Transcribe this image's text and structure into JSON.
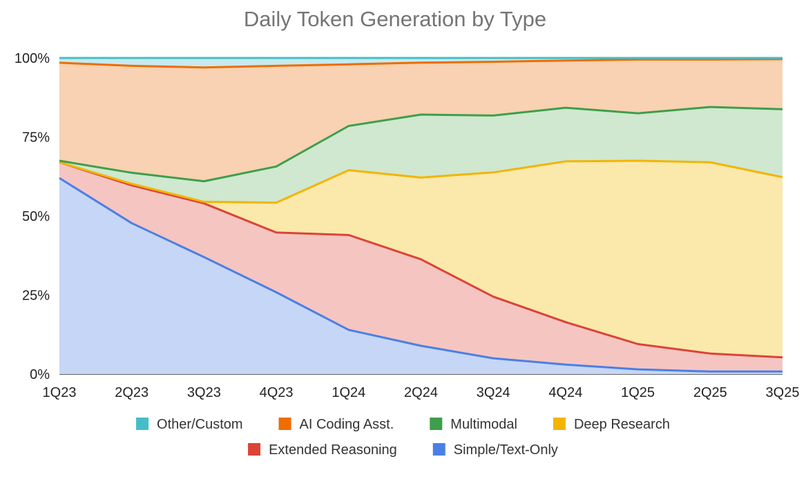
{
  "chart_data": {
    "type": "area",
    "stacked": "percent",
    "title": "Daily Token Generation by Type",
    "xlabel": "",
    "ylabel": "",
    "categories": [
      "1Q23",
      "2Q23",
      "3Q23",
      "4Q23",
      "1Q24",
      "2Q24",
      "3Q24",
      "4Q24",
      "1Q25",
      "2Q25",
      "3Q25"
    ],
    "ylim": [
      0,
      100
    ],
    "yticks": [
      0,
      25,
      50,
      75,
      100
    ],
    "ytick_labels": [
      "0%",
      "25%",
      "50%",
      "75%",
      "100%"
    ],
    "grid": true,
    "legend_position": "bottom",
    "series": [
      {
        "name": "Simple/Text-Only",
        "line_color": "#4a7fe6",
        "fill_color": "#c6d6f6",
        "values": [
          62,
          48,
          37,
          26,
          14,
          9,
          5,
          3,
          1.5,
          0.8,
          0.8
        ]
      },
      {
        "name": "Extended Reasoning",
        "line_color": "#db4437",
        "fill_color": "#f5c5c2",
        "values": [
          5,
          12,
          17,
          19,
          30,
          27.5,
          19.5,
          13.5,
          8,
          5.7,
          4.5
        ]
      },
      {
        "name": "Deep Research",
        "line_color": "#f4b400",
        "fill_color": "#fbe8ab",
        "values": [
          0,
          0.5,
          0.5,
          9.5,
          20.5,
          26,
          39.3,
          51,
          58,
          60.5,
          57
        ]
      },
      {
        "name": "Multimodal",
        "line_color": "#3e9e4b",
        "fill_color": "#cfe8cf",
        "values": [
          0.5,
          3.5,
          6.5,
          11.5,
          14,
          20,
          18,
          17,
          15,
          17.5,
          21.5
        ]
      },
      {
        "name": "AI Coding Asst.",
        "line_color": "#ef6c00",
        "fill_color": "#f8d2b2",
        "values": [
          31,
          34,
          36,
          32,
          19.5,
          16.5,
          17,
          15,
          17,
          15,
          15.8
        ]
      },
      {
        "name": "Other/Custom",
        "line_color": "#46bdc6",
        "fill_color": "#c6eaee",
        "values": [
          1.5,
          2.5,
          3,
          2.5,
          2,
          1.5,
          1.2,
          0.8,
          0.5,
          0.5,
          0.4
        ]
      }
    ],
    "legend_order": [
      [
        "Other/Custom",
        "AI Coding Asst.",
        "Multimodal",
        "Deep Research"
      ],
      [
        "Extended Reasoning",
        "Simple/Text-Only"
      ]
    ],
    "legend_colors": {
      "Other/Custom": "#46bdc6",
      "AI Coding Asst.": "#ef6c00",
      "Multimodal": "#3e9e4b",
      "Deep Research": "#f4b400",
      "Extended Reasoning": "#db4437",
      "Simple/Text-Only": "#4a7fe6"
    }
  }
}
